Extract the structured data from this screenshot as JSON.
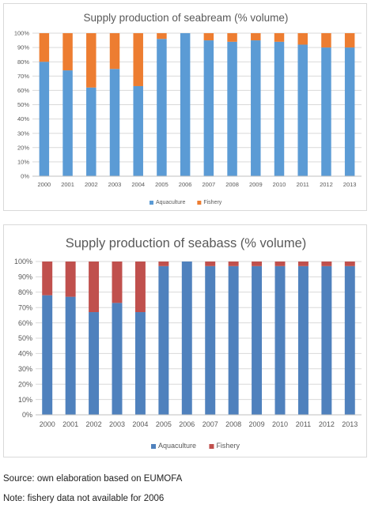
{
  "chart_data": [
    {
      "type": "bar",
      "stacked": true,
      "title": "Supply production of seabream (% volume)",
      "categories": [
        "2000",
        "2001",
        "2002",
        "2003",
        "2004",
        "2005",
        "2006",
        "2007",
        "2008",
        "2009",
        "2010",
        "2011",
        "2012",
        "2013"
      ],
      "series": [
        {
          "name": "Aquaculture",
          "color": "#5b9bd5",
          "values": [
            80,
            74,
            62,
            75,
            63,
            96,
            100,
            95,
            94,
            95,
            94,
            92,
            90,
            90
          ]
        },
        {
          "name": "Fishery",
          "color": "#ed7d31",
          "values": [
            20,
            26,
            38,
            25,
            37,
            4,
            0,
            5,
            6,
            5,
            6,
            8,
            10,
            10
          ]
        }
      ],
      "ylim": [
        0,
        100
      ],
      "yticks": [
        "0%",
        "10%",
        "20%",
        "30%",
        "40%",
        "50%",
        "60%",
        "70%",
        "80%",
        "90%",
        "100%"
      ],
      "grid": true,
      "legend": "bottom"
    },
    {
      "type": "bar",
      "stacked": true,
      "title": "Supply production of seabass (% volume)",
      "categories": [
        "2000",
        "2001",
        "2002",
        "2003",
        "2004",
        "2005",
        "2006",
        "2007",
        "2008",
        "2009",
        "2010",
        "2011",
        "2012",
        "2013"
      ],
      "series": [
        {
          "name": "Aquaculture",
          "color": "#4f81bd",
          "values": [
            78,
            77,
            67,
            73,
            67,
            97,
            100,
            97,
            97,
            97,
            97,
            97,
            97,
            97
          ]
        },
        {
          "name": "Fishery",
          "color": "#c0504d",
          "values": [
            22,
            23,
            33,
            27,
            33,
            3,
            0,
            3,
            3,
            3,
            3,
            3,
            3,
            3
          ]
        }
      ],
      "ylim": [
        0,
        100
      ],
      "yticks": [
        "0%",
        "10%",
        "20%",
        "30%",
        "40%",
        "50%",
        "60%",
        "70%",
        "80%",
        "90%",
        "100%"
      ],
      "grid": true,
      "legend": "bottom"
    }
  ],
  "notes": {
    "source": "Source: own elaboration based on EUMOFA",
    "fishery": "Note: fishery data not available for 2006"
  }
}
